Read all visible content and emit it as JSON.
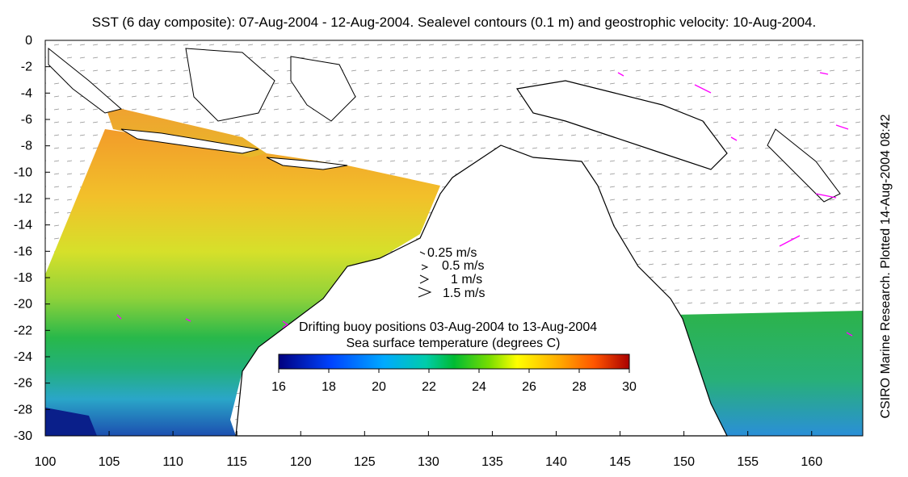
{
  "title": "SST (6 day composite): 07-Aug-2004 - 12-Aug-2004. Sealevel contours (0.1 m) and geostrophic velocity: 10-Aug-2004.",
  "credit": "CSIRO Marine Research. Plotted 14-Aug-2004 08:42",
  "map": {
    "lon_range": [
      100,
      164
    ],
    "lat_range": [
      -30,
      0
    ],
    "x_ticks": [
      "100",
      "105",
      "110",
      "115",
      "120",
      "125",
      "130",
      "135",
      "140",
      "145",
      "150",
      "155",
      "160"
    ],
    "y_ticks": [
      "0",
      "-2",
      "-4",
      "-6",
      "-8",
      "-10",
      "-12",
      "-14",
      "-16",
      "-18",
      "-20",
      "-22",
      "-24",
      "-26",
      "-28",
      "-30"
    ]
  },
  "velocity_key": {
    "items": [
      {
        "label": "0.25 m/s",
        "speed": 0.25
      },
      {
        "label": "0.5 m/s",
        "speed": 0.5
      },
      {
        "label": "1 m/s",
        "speed": 1
      },
      {
        "label": "1.5 m/s",
        "speed": 1.5
      }
    ]
  },
  "buoy_legend": {
    "label": "Drifting buoy positions 03-Aug-2004 to 13-Aug-2004",
    "marker_color": "#ff00ff"
  },
  "colorbar": {
    "title": "Sea surface temperature (degrees C)",
    "range": [
      16,
      30
    ],
    "ticks": [
      "16",
      "18",
      "20",
      "22",
      "24",
      "26",
      "28",
      "30"
    ],
    "colors": [
      "#00007f",
      "#0000ff",
      "#0080ff",
      "#00ffff",
      "#00cc66",
      "#33cc00",
      "#ccff00",
      "#ffff00",
      "#ffaa00",
      "#ff6600",
      "#cc0000",
      "#7f0000"
    ]
  }
}
